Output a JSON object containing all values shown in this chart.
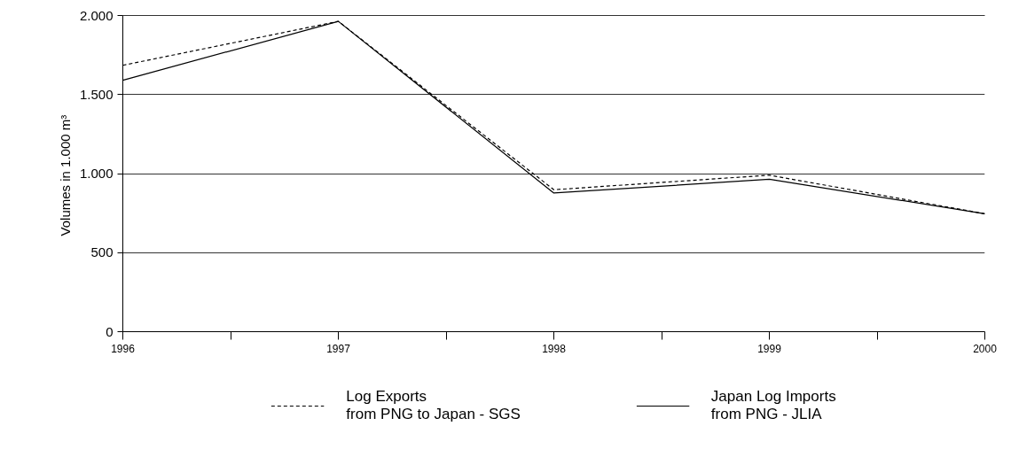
{
  "chart_data": {
    "type": "line",
    "ylabel": "Volumes in  1.000 m³",
    "x": [
      1996,
      1997,
      1998,
      1999,
      2000
    ],
    "xlim": [
      1996,
      2000
    ],
    "xticks": [
      1996,
      {
        "value": 1996.5,
        "label": null
      },
      1997,
      {
        "value": 1997.5,
        "label": null
      },
      1998,
      {
        "value": 1998.5,
        "label": null
      },
      1999,
      {
        "value": 1999.5,
        "label": null
      },
      2000
    ],
    "ylim": [
      0,
      2000
    ],
    "yticks": [
      {
        "value": 0,
        "label": "0"
      },
      {
        "value": 500,
        "label": "500"
      },
      {
        "value": 1000,
        "label": "1.000"
      },
      {
        "value": 1500,
        "label": "1.500"
      },
      {
        "value": 2000,
        "label": "2.000"
      }
    ],
    "grid": "y",
    "legend": "bottom",
    "marker": "none",
    "series": [
      {
        "name": "Log Exports\nfrom PNG to Japan - SGS",
        "color": "#000000",
        "line_style": "dashed",
        "values": [
          1685,
          1963,
          898,
          990,
          746
        ]
      },
      {
        "name": "Japan Log Imports\nfrom PNG - JLIA",
        "color": "#000000",
        "line_style": "solid",
        "values": [
          1590,
          1963,
          877,
          964,
          746
        ]
      }
    ]
  }
}
